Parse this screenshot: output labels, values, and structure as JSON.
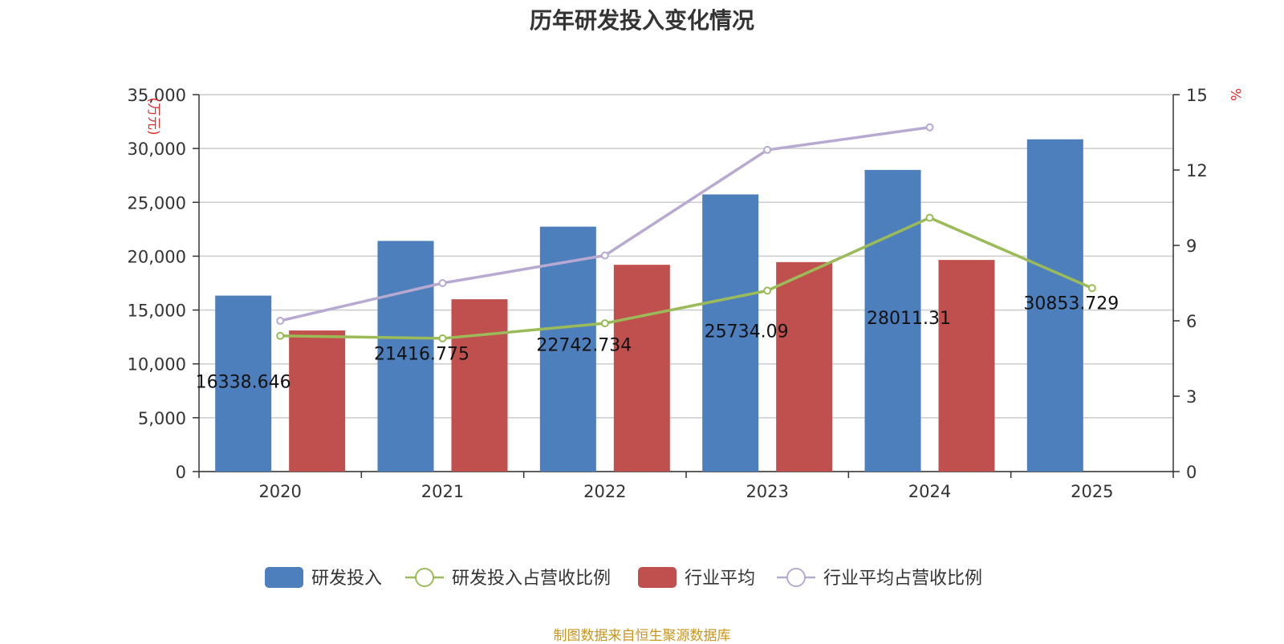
{
  "title": "历年研发投入变化情况",
  "source": "制图数据来自恒生聚源数据库",
  "colors": {
    "rd_bar": "#4e7fbd",
    "industry_bar": "#c0504d",
    "rd_ratio_line": "#9bbb59",
    "industry_ratio_line": "#b8a9d1",
    "unit": "#e03030"
  },
  "chart_data": {
    "type": "bar",
    "categories": [
      "2020",
      "2021",
      "2022",
      "2023",
      "2024",
      "2025"
    ],
    "left_axis": {
      "unit": "(万元)",
      "ylim": [
        0,
        35000
      ],
      "ticks": [
        "0",
        "5,000",
        "10,000",
        "15,000",
        "20,000",
        "25,000",
        "30,000",
        "35,000"
      ]
    },
    "right_axis": {
      "unit": "%",
      "ylim": [
        0,
        15
      ],
      "ticks": [
        "0",
        "3",
        "6",
        "9",
        "12",
        "15"
      ]
    },
    "series": [
      {
        "name": "研发投入",
        "type": "bar",
        "axis": "left",
        "values": [
          16338.646,
          21416.775,
          22742.734,
          25734.09,
          28011.31,
          30853.729
        ],
        "labels": [
          "16338.646",
          "21416.775",
          "22742.734",
          "25734.09",
          "28011.31",
          "30853.729"
        ]
      },
      {
        "name": "研发投入占营收比例",
        "type": "line",
        "axis": "right",
        "values": [
          5.4,
          5.3,
          5.9,
          7.2,
          10.1,
          7.3
        ]
      },
      {
        "name": "行业平均",
        "type": "bar",
        "axis": "left",
        "values": [
          13100,
          16000,
          19200,
          19450,
          19650,
          null
        ]
      },
      {
        "name": "行业平均占营收比例",
        "type": "line",
        "axis": "right",
        "values": [
          6.0,
          7.5,
          8.6,
          12.8,
          13.7,
          null
        ]
      }
    ],
    "grid": true,
    "legend_position": "bottom"
  }
}
